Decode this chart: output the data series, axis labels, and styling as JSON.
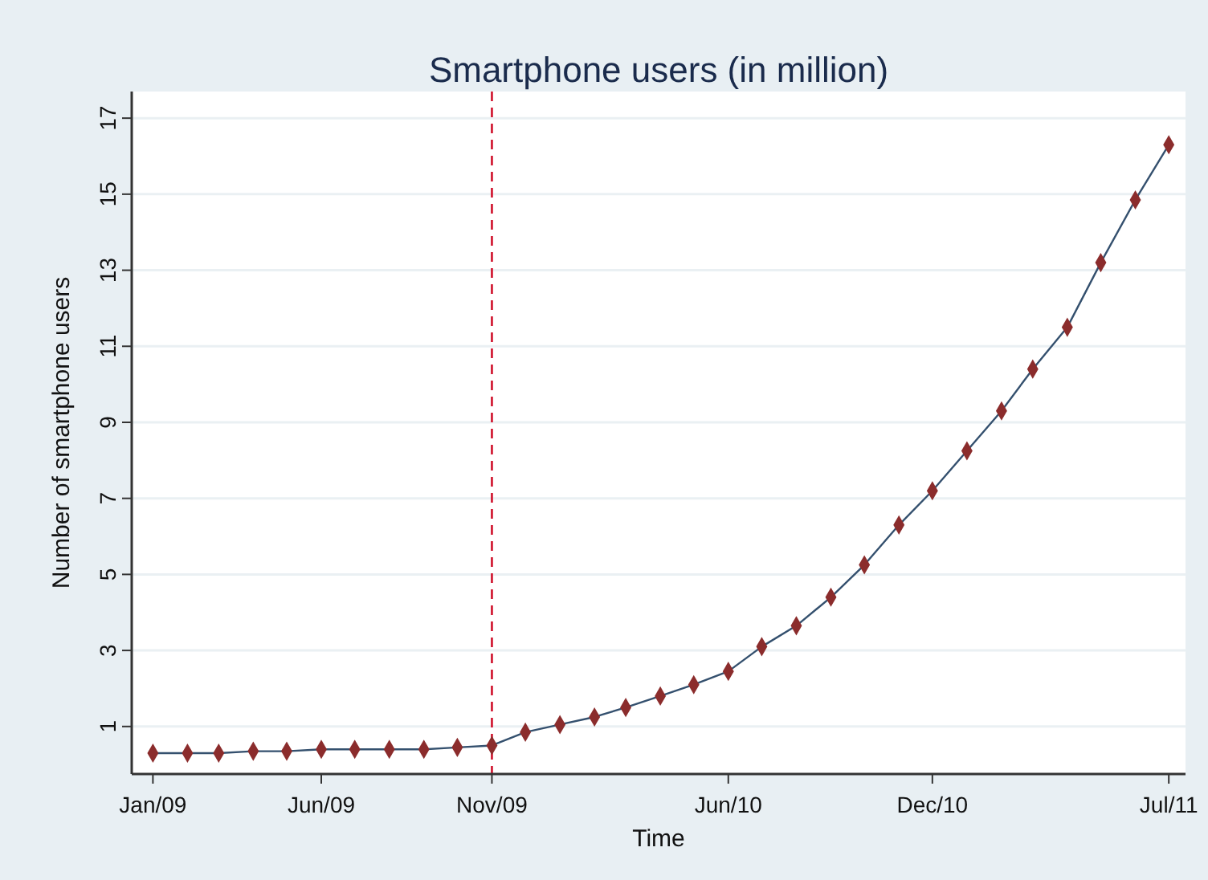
{
  "chart_data": {
    "type": "line",
    "title": "Smartphone users (in million)",
    "xlabel": "Time",
    "ylabel": "Number of smartphone users",
    "x": [
      "2009-01",
      "2009-02",
      "2009-03",
      "2009-04",
      "2009-05",
      "2009-06",
      "2009-07",
      "2009-08",
      "2009-09",
      "2009-10",
      "2009-11",
      "2009-12",
      "2010-01",
      "2010-02",
      "2010-03",
      "2010-04",
      "2010-05",
      "2010-06",
      "2010-07",
      "2010-08",
      "2010-09",
      "2010-10",
      "2010-11",
      "2010-12",
      "2011-01",
      "2011-02",
      "2011-03",
      "2011-04",
      "2011-05",
      "2011-06",
      "2011-07"
    ],
    "series": [
      {
        "color": "#8b2c2c",
        "values": [
          0.3,
          0.3,
          0.3,
          0.35,
          0.35,
          0.4,
          0.4,
          0.4,
          0.4,
          0.45,
          0.5,
          0.85,
          1.05,
          1.25,
          1.5,
          1.8,
          2.1,
          2.45,
          3.1,
          3.65,
          4.4,
          5.25,
          6.3,
          7.2,
          8.25,
          9.3,
          10.4,
          11.5,
          13.2,
          14.85,
          16.3
        ]
      }
    ],
    "xlim": [
      "2008-12-13",
      "2011-07-16"
    ],
    "xticks": [
      {
        "value": "2009-01",
        "label": "Jan/09"
      },
      {
        "value": "2009-06",
        "label": "Jun/09"
      },
      {
        "value": "2009-11",
        "label": "Nov/09"
      },
      {
        "value": "2010-06",
        "label": "Jun/10"
      },
      {
        "value": "2010-12",
        "label": "Dec/10"
      },
      {
        "value": "2011-07",
        "label": "Jul/11"
      }
    ],
    "ylim": [
      -0.25,
      17.7
    ],
    "yticks": [
      1,
      3,
      5,
      7,
      9,
      11,
      13,
      15,
      17
    ],
    "ref_lines": [
      {
        "axis": "x",
        "value": "2009-11",
        "color": "#d0112b",
        "line_style": "dashed"
      }
    ],
    "grid": "y",
    "marker": "diamond",
    "line_style": "solid"
  }
}
